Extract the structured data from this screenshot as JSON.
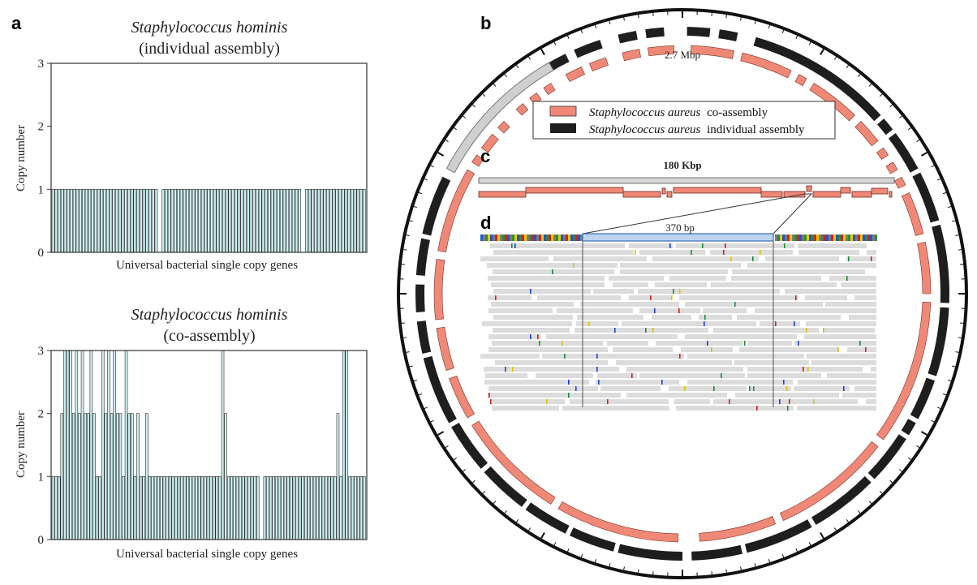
{
  "panels": {
    "a": "a",
    "b": "b",
    "c": "c",
    "d": "d"
  },
  "chart_data": [
    {
      "type": "bar",
      "panel": "a-top",
      "title_species": "Staphylococcus hominis",
      "title_sub": "(individual assembly)",
      "xlabel": "Universal bacterial single copy genes",
      "ylabel": "Copy number",
      "ylim": [
        0,
        3
      ],
      "yticks": [
        "0",
        "1",
        "2",
        "3"
      ],
      "bar_color": "#cdeef0",
      "values": [
        1,
        1,
        1,
        1,
        1,
        1,
        1,
        1,
        1,
        1,
        1,
        1,
        1,
        1,
        1,
        1,
        1,
        1,
        1,
        1,
        1,
        1,
        1,
        1,
        1,
        1,
        1,
        1,
        1,
        1,
        1,
        1,
        1,
        1,
        1,
        1,
        1,
        1,
        1,
        1,
        1,
        1,
        1,
        1,
        1,
        1,
        1,
        1,
        1,
        1,
        1,
        1,
        1,
        1,
        1,
        1,
        1,
        1,
        1,
        1,
        1,
        1,
        1,
        1,
        1,
        1,
        1,
        1,
        1,
        1,
        1,
        1,
        1,
        1,
        1,
        1,
        1,
        1,
        1,
        1,
        1,
        1,
        1,
        1,
        1,
        1,
        1,
        1,
        1,
        1,
        1,
        1,
        1,
        1,
        1,
        1,
        1,
        1,
        1,
        1,
        1
      ],
      "gaps_after": [
        34,
        80
      ]
    },
    {
      "type": "bar",
      "panel": "a-bottom",
      "title_species": "Staphylococcus hominis",
      "title_sub": "(co-assembly)",
      "xlabel": "Universal bacterial single copy genes",
      "ylabel": "Copy number",
      "ylim": [
        0,
        3
      ],
      "yticks": [
        "0",
        "1",
        "2",
        "3"
      ],
      "bar_color": "#cdeef0",
      "values": [
        1,
        1,
        1,
        2,
        3,
        3,
        3,
        2,
        3,
        2,
        3,
        2,
        2,
        3,
        2,
        1,
        1,
        3,
        2,
        3,
        2,
        3,
        2,
        2,
        1,
        3,
        2,
        2,
        1,
        2,
        1,
        1,
        2,
        1,
        1,
        1,
        1,
        1,
        1,
        1,
        1,
        1,
        1,
        1,
        1,
        1,
        1,
        1,
        1,
        1,
        1,
        1,
        1,
        1,
        1,
        1,
        1,
        1,
        3,
        2,
        1,
        1,
        1,
        1,
        1,
        1,
        1,
        1,
        1,
        1,
        1,
        1,
        1,
        1,
        1,
        1,
        1,
        1,
        1,
        1,
        1,
        1,
        1,
        1,
        1,
        1,
        1,
        1,
        1,
        1,
        1,
        1,
        1,
        1,
        1,
        1,
        2,
        1,
        3,
        3,
        1,
        1,
        1,
        1,
        1,
        1
      ],
      "gaps_after": [
        70
      ]
    },
    {
      "type": "circular-map",
      "panel": "b",
      "genome_size_label": "2.7 Mbp",
      "legend": [
        {
          "label_species": "Staphylococcus aureus",
          "label_rest": "co-assembly",
          "color": "#f08878"
        },
        {
          "label_species": "Staphylococcus aureus",
          "label_rest": "individual assembly",
          "color": "#1e1e1e"
        }
      ]
    },
    {
      "type": "linear-map",
      "panel": "c",
      "length_label": "180 Kbp"
    },
    {
      "type": "read-pileup",
      "panel": "d",
      "region_label": "370 bp"
    }
  ]
}
